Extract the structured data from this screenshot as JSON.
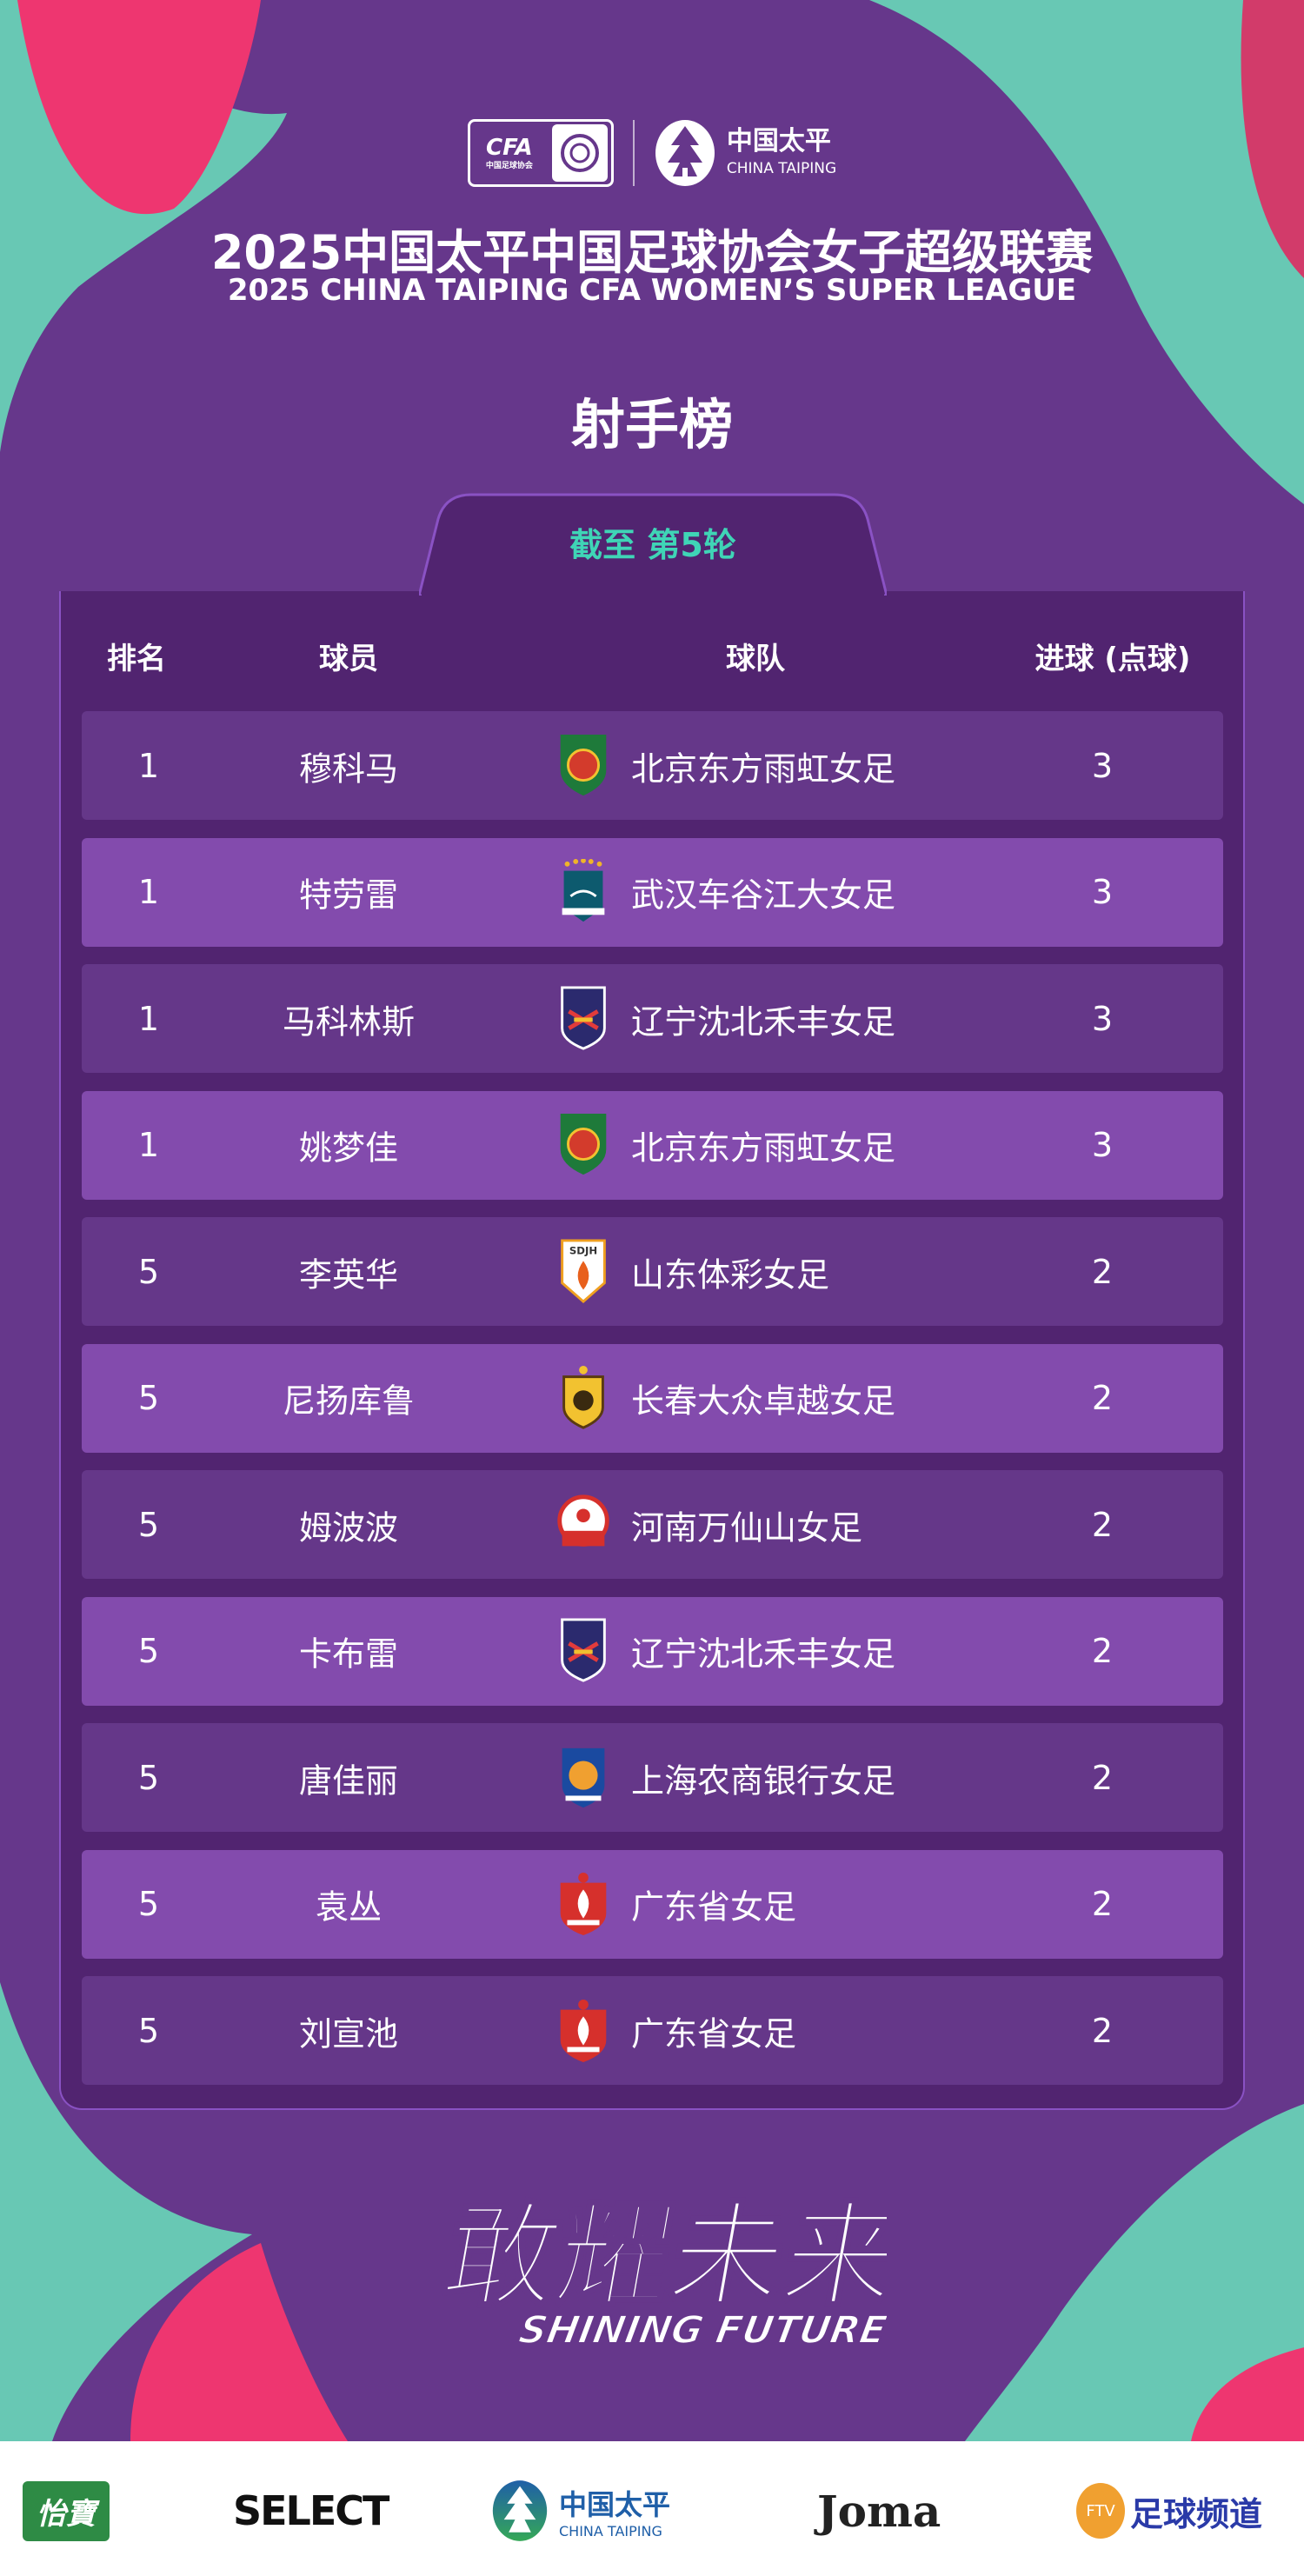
{
  "header": {
    "cfa_logo": {
      "text": "CFA",
      "sub": "中国足球协会",
      "icon": "cfa-rose-icon"
    },
    "sponsor_logo": {
      "cn": "中国太平",
      "en": "CHINA TAIPING",
      "icon": "pine-tree-icon"
    },
    "title_cn": "2025中国太平中国足球协会女子超级联赛",
    "title_en": "2025 CHINA TAIPING CFA WOMEN’S SUPER LEAGUE"
  },
  "heading": "射手榜",
  "round_tab": "截至 第5轮",
  "table": {
    "columns": [
      "排名",
      "球员",
      "球队",
      "进球 (点球)"
    ],
    "rows": [
      {
        "rank": "1",
        "player": "穆科马",
        "team": "北京东方雨虹女足",
        "goals": "3",
        "logo": "beijing-crest-icon"
      },
      {
        "rank": "1",
        "player": "特劳雷",
        "team": "武汉车谷江大女足",
        "goals": "3",
        "logo": "wuhan-crest-icon"
      },
      {
        "rank": "1",
        "player": "马科林斯",
        "team": "辽宁沈北禾丰女足",
        "goals": "3",
        "logo": "liaoning-crest-icon"
      },
      {
        "rank": "1",
        "player": "姚梦佳",
        "team": "北京东方雨虹女足",
        "goals": "3",
        "logo": "beijing-crest-icon"
      },
      {
        "rank": "5",
        "player": "李英华",
        "team": "山东体彩女足",
        "goals": "2",
        "logo": "shandong-crest-icon"
      },
      {
        "rank": "5",
        "player": "尼扬库鲁",
        "team": "长春大众卓越女足",
        "goals": "2",
        "logo": "changchun-crest-icon"
      },
      {
        "rank": "5",
        "player": "姆波波",
        "team": "河南万仙山女足",
        "goals": "2",
        "logo": "henan-crest-icon"
      },
      {
        "rank": "5",
        "player": "卡布雷",
        "team": "辽宁沈北禾丰女足",
        "goals": "2",
        "logo": "liaoning-crest-icon"
      },
      {
        "rank": "5",
        "player": "唐佳丽",
        "team": "上海农商银行女足",
        "goals": "2",
        "logo": "shanghai-crest-icon"
      },
      {
        "rank": "5",
        "player": "袁丛",
        "team": "广东省女足",
        "goals": "2",
        "logo": "guangdong-crest-icon"
      },
      {
        "rank": "5",
        "player": "刘宣池",
        "team": "广东省女足",
        "goals": "2",
        "logo": "guangdong-crest-icon"
      }
    ]
  },
  "slogan": {
    "cn": "敢耀未来",
    "en": "SHINING FUTURE"
  },
  "sponsors": [
    {
      "name": "怡寶",
      "icon": "yibao-logo"
    },
    {
      "name": "SELECT",
      "icon": "select-logo"
    },
    {
      "name": "中国太平",
      "sub": "CHINA TAIPING",
      "icon": "china-taiping-logo"
    },
    {
      "name": "Joma",
      "icon": "joma-logo"
    },
    {
      "name": "足球频道",
      "sub": "FTV",
      "icon": "ftv-logo"
    }
  ],
  "colors": {
    "background": "#66378b",
    "panel": "#512470",
    "row_dark": "#653789",
    "row_light": "#834bad",
    "accent_teal": "#3fd5b6",
    "pink": "#ee3670",
    "teal_shape": "#68c8b4"
  }
}
